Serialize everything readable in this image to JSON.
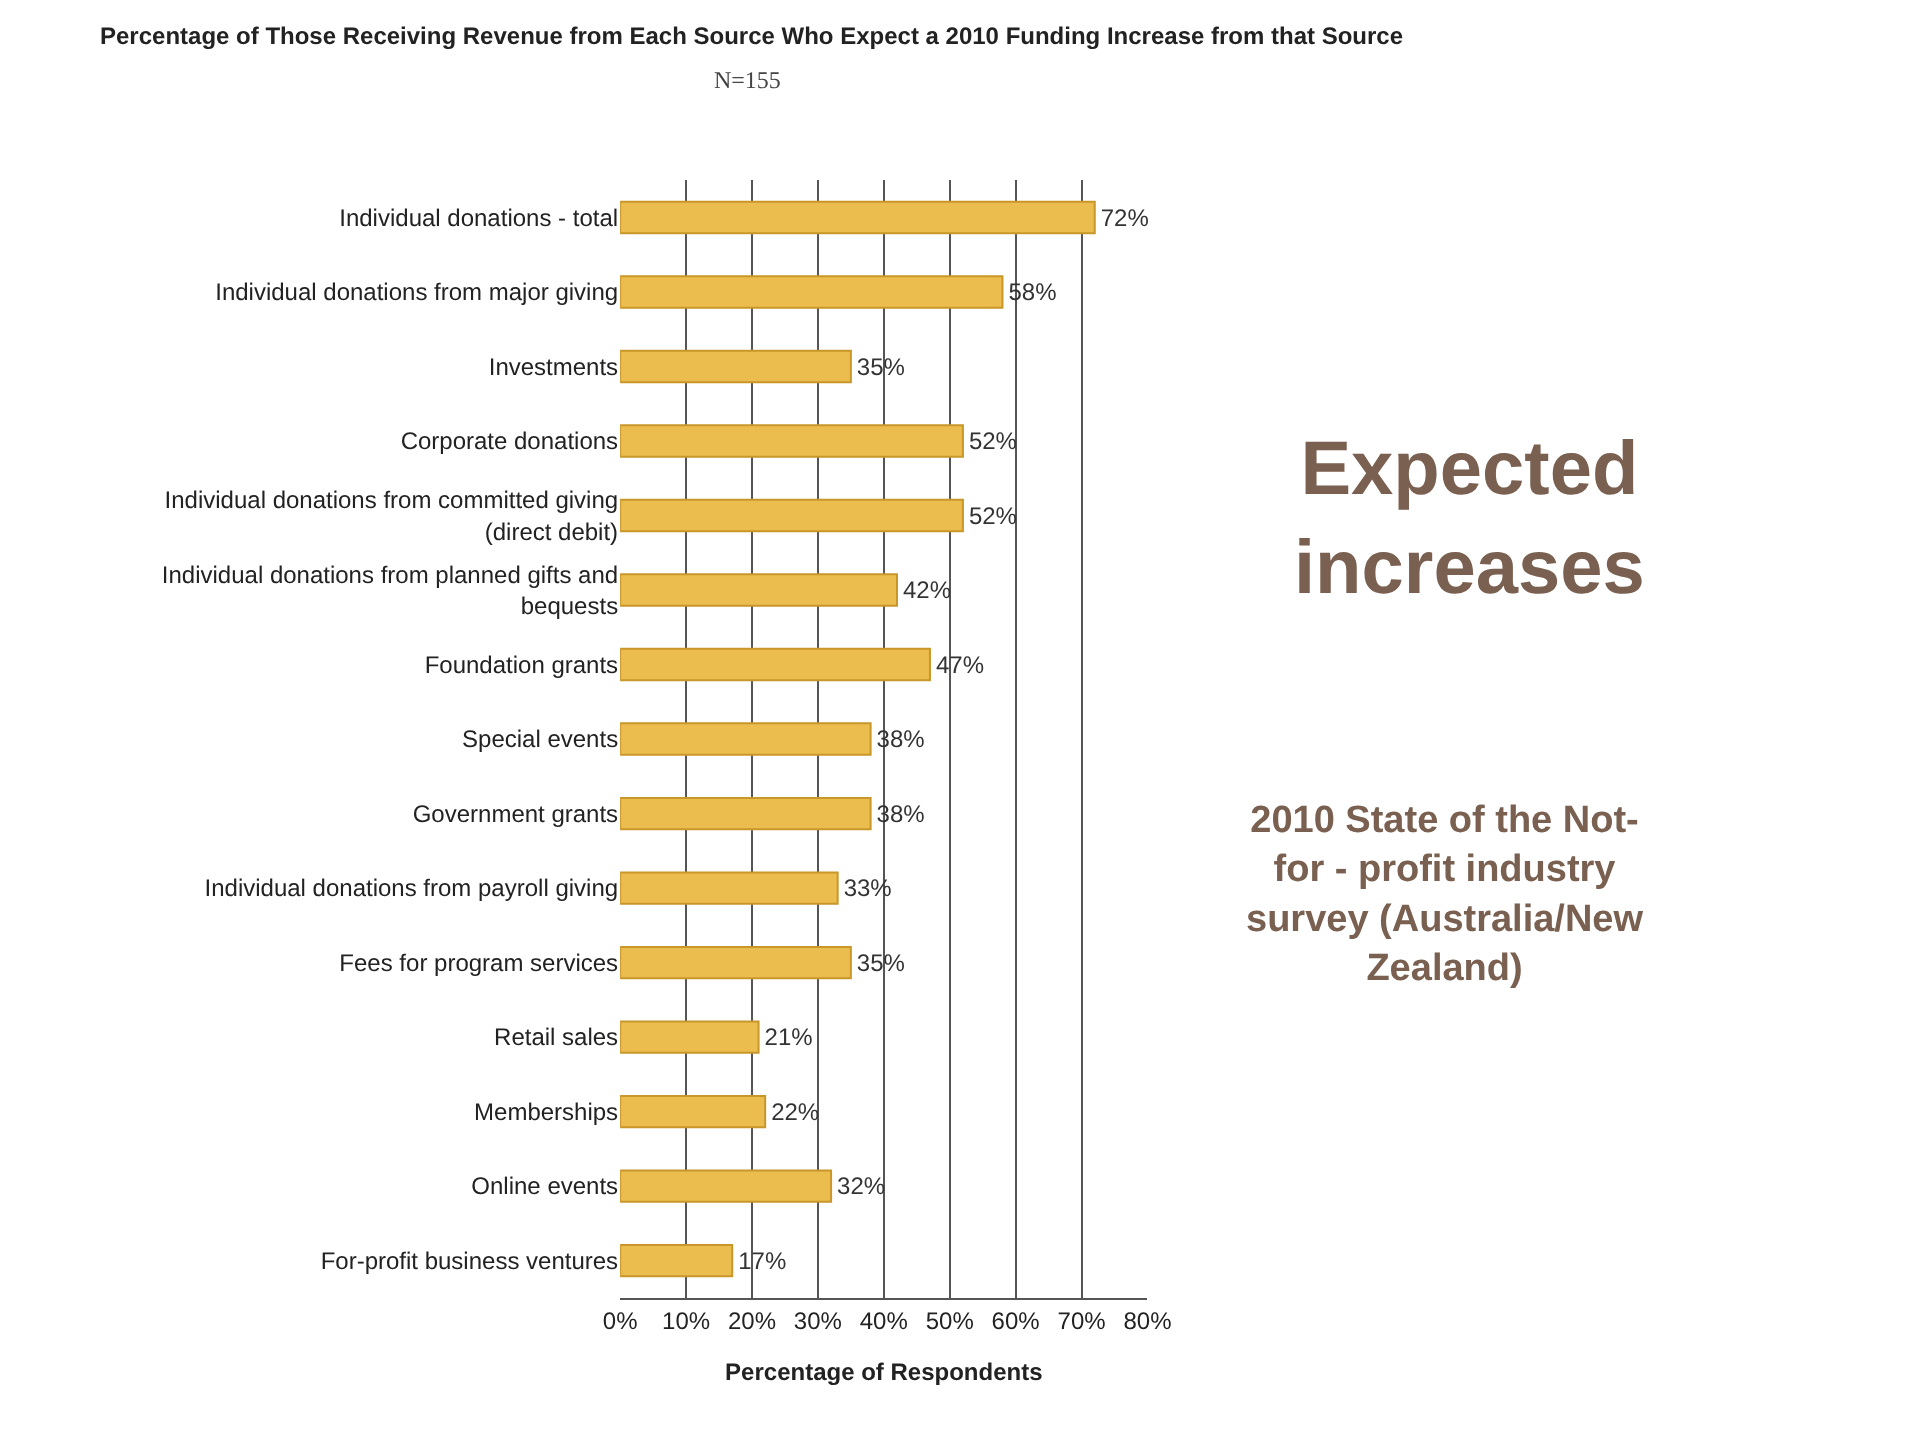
{
  "chart_data": {
    "type": "bar",
    "orientation": "horizontal",
    "title": "Percentage of Those Receiving Revenue from Each Source Who Expect a 2010 Funding Increase from that Source",
    "subtitle": "N=155",
    "xlabel": "Percentage of Respondents",
    "categories": [
      "Individual donations - total",
      "Individual donations from major giving",
      "Investments",
      "Corporate donations",
      "Individual donations from committed giving (direct debit)",
      "Individual donations from planned gifts and bequests",
      "Foundation grants",
      "Special events",
      "Government grants",
      "Individual donations from payroll giving",
      "Fees for program services",
      "Retail sales",
      "Memberships",
      "Online events",
      "For-profit business ventures"
    ],
    "values": [
      72,
      58,
      35,
      52,
      52,
      42,
      47,
      38,
      38,
      33,
      35,
      21,
      22,
      32,
      17
    ],
    "value_labels": [
      "72%",
      "58%",
      "35%",
      "52%",
      "52%",
      "42%",
      "47%",
      "38%",
      "38%",
      "33%",
      "35%",
      "21%",
      "22%",
      "32%",
      "17%"
    ],
    "color": "#ebbd4e",
    "xlim": [
      0,
      80
    ],
    "xticks": [
      {
        "value": 0,
        "label": "0%"
      },
      {
        "value": 10,
        "label": "10%"
      },
      {
        "value": 20,
        "label": "20%"
      },
      {
        "value": 30,
        "label": "30%"
      },
      {
        "value": 40,
        "label": "40%"
      },
      {
        "value": 50,
        "label": "50%"
      },
      {
        "value": 60,
        "label": "60%"
      },
      {
        "value": 70,
        "label": "70%"
      },
      {
        "value": 80,
        "label": "80%"
      }
    ],
    "grid": "x",
    "legend": false,
    "annotations": [
      "Expected increases",
      "2010 State of the Not-for - profit industry survey (Australia/New Zealand)"
    ]
  }
}
